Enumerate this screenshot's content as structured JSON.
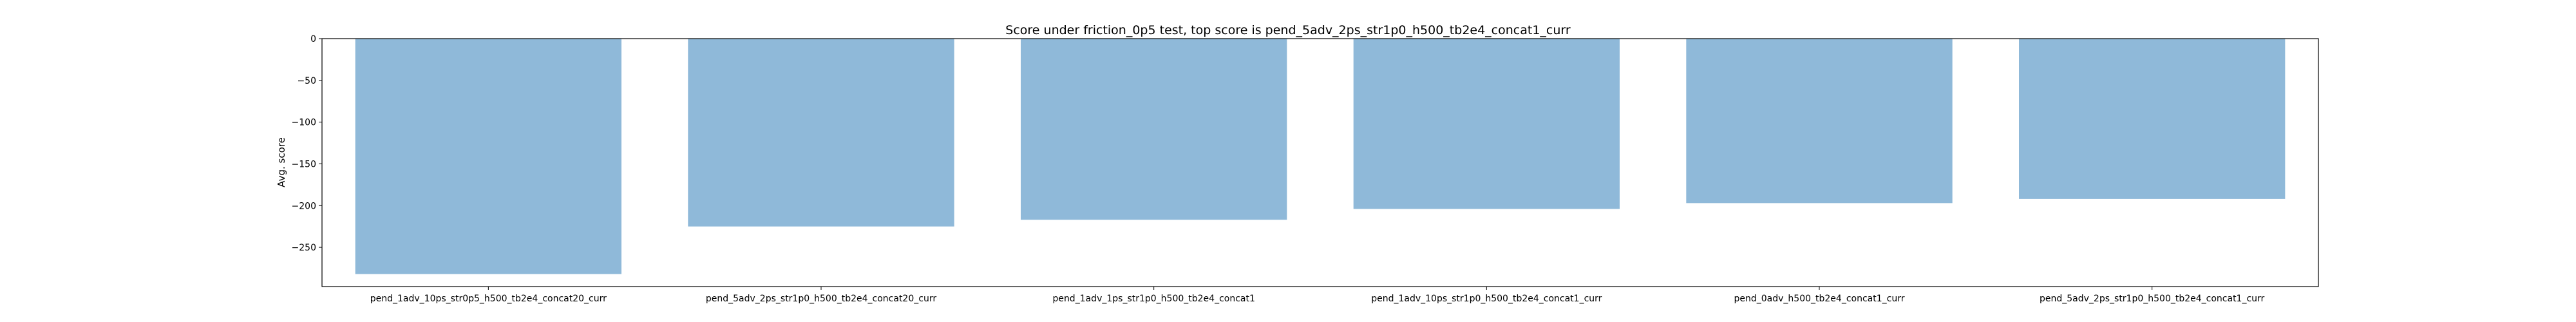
{
  "chart_data": {
    "type": "bar",
    "title": "Score under friction_0p5 test, top score is pend_5adv_2ps_str1p0_h500_tb2e4_concat1_curr",
    "xlabel": "",
    "ylabel": "Avg. score",
    "categories": [
      "pend_1adv_10ps_str0p5_h500_tb2e4_concat20_curr",
      "pend_5adv_2ps_str1p0_h500_tb2e4_concat20_curr",
      "pend_1adv_1ps_str1p0_h500_tb2e4_concat1",
      "pend_1adv_10ps_str1p0_h500_tb2e4_concat1_curr",
      "pend_0adv_h500_tb2e4_concat1_curr",
      "pend_5adv_2ps_str1p0_h500_tb2e4_concat1_curr"
    ],
    "values": [
      -282,
      -225,
      -217,
      -204,
      -197,
      -192
    ],
    "ylim": [
      -297,
      0
    ],
    "yticks": [
      0,
      -50,
      -100,
      -150,
      -200,
      -250
    ],
    "ytick_labels": [
      "0",
      "−50",
      "−100",
      "−150",
      "−200",
      "−250"
    ],
    "bar_color": "#8fb9d9",
    "grid": false,
    "legend": "none"
  }
}
